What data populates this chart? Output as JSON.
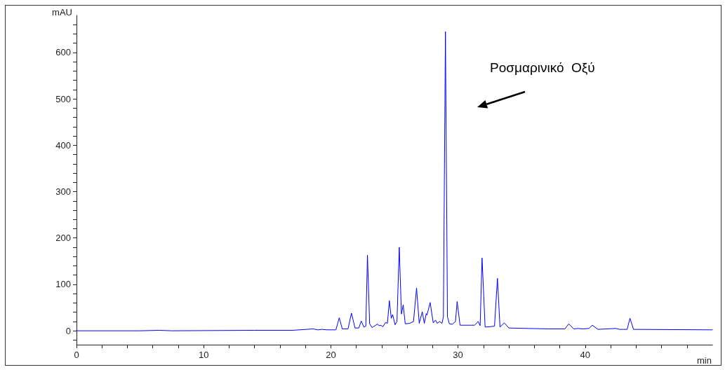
{
  "chart_data": {
    "type": "line",
    "xlabel": "min",
    "ylabel": "mAU",
    "x": [
      0,
      5,
      6.5,
      7.5,
      14,
      17,
      18.6,
      19.0,
      19.3,
      19.7,
      20.4,
      20.66,
      20.9,
      21.35,
      21.62,
      21.9,
      22.2,
      22.39,
      22.6,
      22.75,
      22.88,
      23.05,
      23.24,
      23.65,
      23.8,
      23.9,
      24.1,
      24.3,
      24.45,
      24.6,
      24.75,
      24.86,
      25.05,
      25.2,
      25.38,
      25.55,
      25.69,
      25.85,
      26.2,
      26.5,
      26.74,
      26.95,
      27.19,
      27.35,
      27.5,
      27.56,
      27.81,
      28.05,
      28.23,
      28.37,
      28.55,
      28.74,
      28.85,
      29.01,
      29.17,
      29.32,
      29.55,
      29.8,
      29.93,
      30.16,
      31.31,
      31.58,
      31.74,
      31.89,
      32.13,
      32.6,
      32.87,
      33.1,
      33.3,
      33.64,
      34.0,
      35.5,
      37.1,
      38.4,
      38.71,
      39.1,
      39.45,
      39.8,
      40.3,
      40.56,
      41.0,
      42.4,
      42.7,
      43.3,
      43.52,
      43.8,
      50
    ],
    "series": [
      {
        "color": "#0000ff",
        "values": [
          0,
          0,
          1,
          0,
          1,
          1,
          4,
          2,
          3,
          2,
          2,
          28,
          4,
          4,
          38,
          6,
          6,
          21,
          8,
          10,
          163,
          15,
          7,
          14,
          11,
          12,
          9,
          18,
          16,
          65,
          27,
          35,
          13,
          20,
          180,
          36,
          56,
          15,
          16,
          20,
          92,
          16,
          41,
          16,
          37,
          34,
          61,
          17,
          23,
          16,
          20,
          16,
          30,
          645,
          30,
          15,
          14,
          20,
          63,
          12,
          12,
          20,
          11,
          157,
          8,
          9,
          10,
          113,
          8,
          17,
          6,
          5,
          4,
          4,
          15,
          4,
          5,
          4,
          5,
          12,
          3,
          5,
          3,
          3,
          27,
          3,
          2
        ]
      }
    ],
    "xlim": [
      0,
      50
    ],
    "xticks": [
      0,
      {
        "value": 2,
        "label": null
      },
      {
        "value": 4,
        "label": null
      },
      {
        "value": 6,
        "label": null
      },
      {
        "value": 8,
        "label": null
      },
      10,
      {
        "value": 12,
        "label": null
      },
      {
        "value": 14,
        "label": null
      },
      {
        "value": 16,
        "label": null
      },
      {
        "value": 18,
        "label": null
      },
      20,
      {
        "value": 22,
        "label": null
      },
      {
        "value": 24,
        "label": null
      },
      {
        "value": 26,
        "label": null
      },
      {
        "value": 28,
        "label": null
      },
      30,
      {
        "value": 32,
        "label": null
      },
      {
        "value": 34,
        "label": null
      },
      {
        "value": 36,
        "label": null
      },
      {
        "value": 38,
        "label": null
      },
      40,
      {
        "value": 42,
        "label": null
      },
      {
        "value": 44,
        "label": null
      },
      {
        "value": 46,
        "label": null
      },
      {
        "value": 48,
        "label": null
      }
    ],
    "ylim": [
      -30,
      680
    ],
    "yticks": [
      {
        "value": -20,
        "label": null
      },
      0,
      {
        "value": 20,
        "label": null
      },
      {
        "value": 40,
        "label": null
      },
      {
        "value": 60,
        "label": null
      },
      {
        "value": 80,
        "label": null
      },
      100,
      {
        "value": 120,
        "label": null
      },
      {
        "value": 140,
        "label": null
      },
      {
        "value": 160,
        "label": null
      },
      {
        "value": 180,
        "label": null
      },
      200,
      {
        "value": 220,
        "label": null
      },
      {
        "value": 240,
        "label": null
      },
      {
        "value": 260,
        "label": null
      },
      {
        "value": 280,
        "label": null
      },
      300,
      {
        "value": 320,
        "label": null
      },
      {
        "value": 340,
        "label": null
      },
      {
        "value": 360,
        "label": null
      },
      {
        "value": 380,
        "label": null
      },
      400,
      {
        "value": 420,
        "label": null
      },
      {
        "value": 440,
        "label": null
      },
      {
        "value": 460,
        "label": null
      },
      {
        "value": 480,
        "label": null
      },
      500,
      {
        "value": 520,
        "label": null
      },
      {
        "value": 540,
        "label": null
      },
      {
        "value": 560,
        "label": null
      },
      {
        "value": 580,
        "label": null
      },
      600,
      {
        "value": 620,
        "label": null
      },
      {
        "value": 640,
        "label": null
      },
      {
        "value": 660,
        "label": null
      }
    ],
    "annotations": [
      "Ροσμαρινικό  Οξύ"
    ],
    "grid": false,
    "legend": false,
    "marker": "none",
    "line_style": "solid"
  }
}
